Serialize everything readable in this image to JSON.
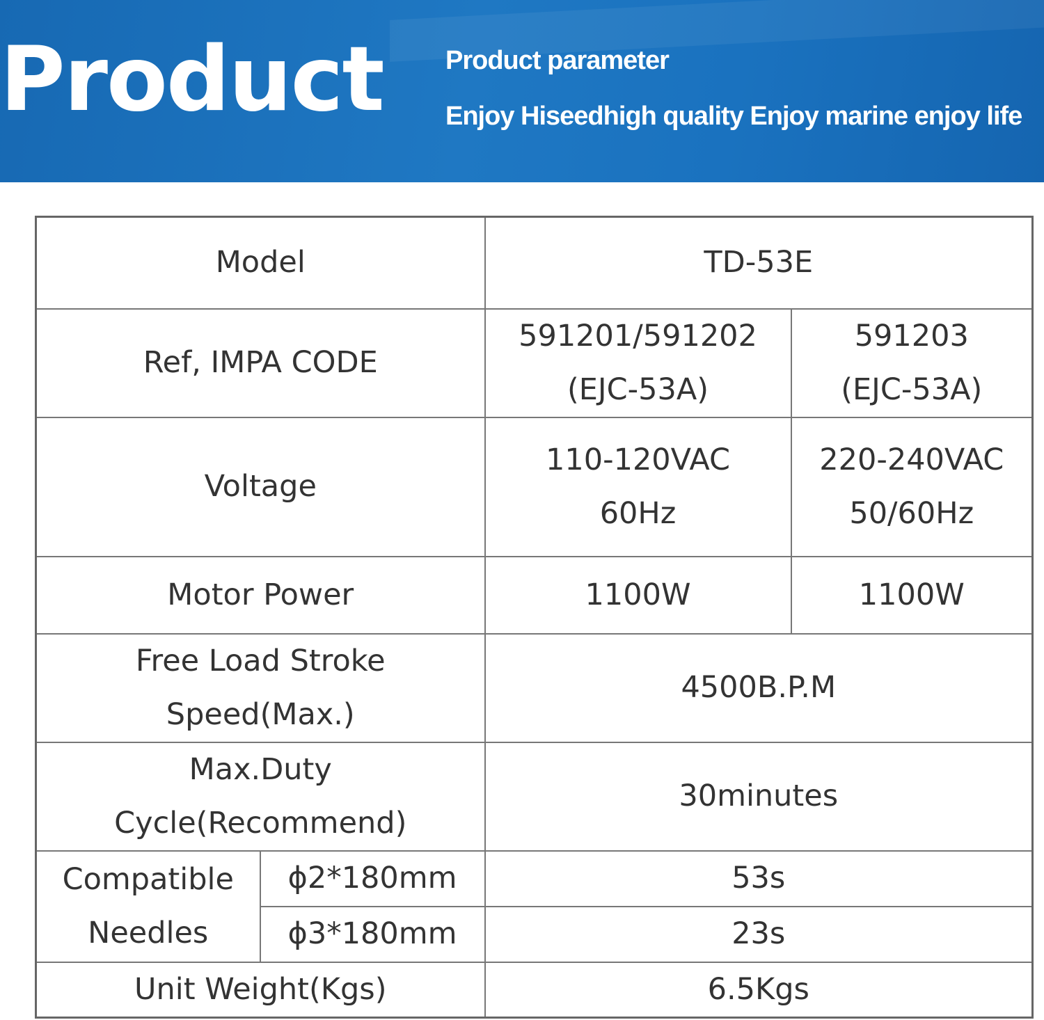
{
  "banner": {
    "title": "Product",
    "subtitle": "Product parameter",
    "tagline": "Enjoy Hiseedhigh quality Enjoy marine  enjoy life",
    "background_color": "#1a70bd",
    "text_color": "#ffffff"
  },
  "table": {
    "model": {
      "label": "Model",
      "value": "TD-53E"
    },
    "impa": {
      "label": "Ref, IMPA CODE",
      "col1_line1": "591201/591202",
      "col1_line2": "(EJC-53A)",
      "col2_line1": "591203",
      "col2_line2": "(EJC-53A)"
    },
    "voltage": {
      "label": "Voltage",
      "col1_line1": "110-120VAC",
      "col1_line2": "60Hz",
      "col2_line1": "220-240VAC",
      "col2_line2": "50/60Hz"
    },
    "motor_power": {
      "label": "Motor Power",
      "col1": "1100W",
      "col2": "1100W"
    },
    "stroke_speed": {
      "label_line1": "Free Load Stroke",
      "label_line2": "Speed(Max.)",
      "value": "4500B.P.M"
    },
    "duty_cycle": {
      "label_line1": "Max.Duty",
      "label_line2": "Cycle(Recommend)",
      "value": "30minutes"
    },
    "needles": {
      "label_line1": "Compatible",
      "label_line2": "Needles",
      "rows": [
        {
          "size": "ϕ2*180mm",
          "value": "53s"
        },
        {
          "size": "ϕ3*180mm",
          "value": "23s"
        }
      ]
    },
    "unit_weight": {
      "label": "Unit Weight(Kgs)",
      "value": "6.5Kgs"
    }
  }
}
